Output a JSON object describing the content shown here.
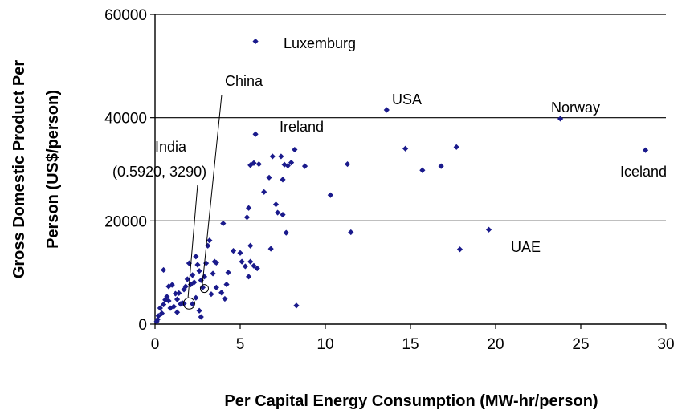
{
  "chart_data": {
    "type": "scatter",
    "xlabel": "Per Capital Energy Consumption (MW-hr/person)",
    "ylabel_lines": [
      "Gross Domestic Product Per",
      "Person (US$/person)"
    ],
    "xlim": [
      0,
      30
    ],
    "ylim": [
      0,
      60000
    ],
    "x_ticks": [
      "0",
      "5",
      "10",
      "15",
      "20",
      "25",
      "30"
    ],
    "y_ticks": [
      "0",
      "20000",
      "40000",
      "60000"
    ],
    "grid": "horizontal",
    "legend": "none",
    "marker_color": "#1a1a8c",
    "annotations": {
      "luxemburg": "Luxemburg",
      "china": "China",
      "usa": "USA",
      "norway": "Norway",
      "ireland": "Ireland",
      "india_name": "India",
      "india_value": "(0.5920, 3290)",
      "iceland": "Iceland",
      "uae": "UAE"
    },
    "highlight_circles": [
      [
        2.0,
        4000
      ],
      [
        2.9,
        6900
      ]
    ],
    "points": [
      [
        5.9,
        54800
      ],
      [
        13.6,
        41500
      ],
      [
        23.8,
        39800
      ],
      [
        28.8,
        33700
      ],
      [
        5.9,
        36800
      ],
      [
        19.6,
        18300
      ],
      [
        17.9,
        14500
      ],
      [
        14.7,
        34000
      ],
      [
        15.7,
        29800
      ],
      [
        16.8,
        30600
      ],
      [
        17.7,
        34300
      ],
      [
        10.3,
        25000
      ],
      [
        11.3,
        31000
      ],
      [
        11.5,
        17800
      ],
      [
        8.3,
        3600
      ],
      [
        5.6,
        30800
      ],
      [
        5.8,
        31200
      ],
      [
        6.1,
        31000
      ],
      [
        6.4,
        25600
      ],
      [
        6.7,
        28400
      ],
      [
        6.9,
        32500
      ],
      [
        7.1,
        23200
      ],
      [
        7.2,
        21600
      ],
      [
        7.4,
        32500
      ],
      [
        7.5,
        28000
      ],
      [
        7.6,
        30900
      ],
      [
        7.8,
        30700
      ],
      [
        8.0,
        31300
      ],
      [
        8.2,
        33800
      ],
      [
        8.8,
        30600
      ],
      [
        7.5,
        21200
      ],
      [
        7.7,
        17700
      ],
      [
        6.8,
        14600
      ],
      [
        5.5,
        22500
      ],
      [
        5.6,
        15200
      ],
      [
        5.4,
        20700
      ],
      [
        5.0,
        13800
      ],
      [
        5.1,
        12100
      ],
      [
        5.3,
        11200
      ],
      [
        5.6,
        12100
      ],
      [
        5.8,
        11300
      ],
      [
        6.0,
        10800
      ],
      [
        5.5,
        9200
      ],
      [
        4.0,
        19500
      ],
      [
        4.6,
        14200
      ],
      [
        4.3,
        10000
      ],
      [
        3.6,
        11900
      ],
      [
        3.4,
        9800
      ],
      [
        3.2,
        16200
      ],
      [
        3.1,
        15200
      ],
      [
        3.0,
        11800
      ],
      [
        2.9,
        9200
      ],
      [
        2.8,
        7100
      ],
      [
        2.7,
        8500
      ],
      [
        2.6,
        10300
      ],
      [
        2.5,
        11500
      ],
      [
        2.4,
        13100
      ],
      [
        2.3,
        8100
      ],
      [
        2.2,
        9500
      ],
      [
        2.1,
        7700
      ],
      [
        2.0,
        11800
      ],
      [
        1.9,
        8700
      ],
      [
        1.8,
        7300
      ],
      [
        1.7,
        6700
      ],
      [
        1.6,
        4100
      ],
      [
        1.5,
        3900
      ],
      [
        1.4,
        6000
      ],
      [
        1.3,
        4800
      ],
      [
        1.2,
        5900
      ],
      [
        1.0,
        7600
      ],
      [
        0.9,
        3100
      ],
      [
        0.8,
        7300
      ],
      [
        0.7,
        5300
      ],
      [
        0.6,
        4700
      ],
      [
        0.5,
        10500
      ],
      [
        0.4,
        2100
      ],
      [
        0.3,
        3100
      ],
      [
        0.2,
        1600
      ],
      [
        0.15,
        900
      ],
      [
        0.1,
        500
      ],
      [
        0.5,
        3800
      ],
      [
        0.8,
        4500
      ],
      [
        1.1,
        3400
      ],
      [
        1.3,
        2300
      ],
      [
        1.7,
        4000
      ],
      [
        2.2,
        3900
      ],
      [
        2.4,
        5100
      ],
      [
        2.6,
        2600
      ],
      [
        2.7,
        1400
      ],
      [
        3.3,
        5800
      ],
      [
        3.6,
        7100
      ],
      [
        3.9,
        6100
      ],
      [
        4.2,
        7700
      ],
      [
        3.5,
        12100
      ],
      [
        4.1,
        4900
      ]
    ]
  }
}
